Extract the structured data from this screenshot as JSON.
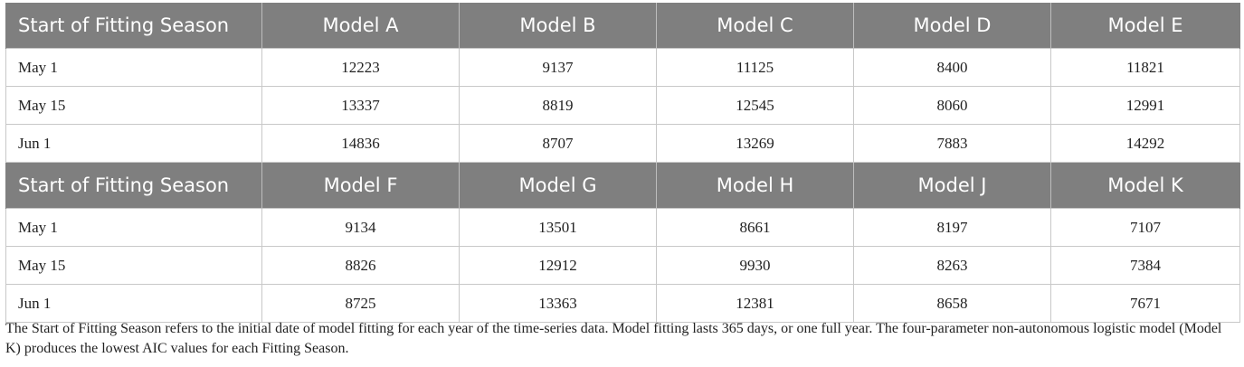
{
  "tables": [
    {
      "headers": [
        "Start of Fitting Season",
        "Model A",
        "Model B",
        "Model C",
        "Model D",
        "Model E"
      ],
      "rows": [
        [
          "May 1",
          "12223",
          "9137",
          "11125",
          "8400",
          "11821"
        ],
        [
          "May 15",
          "13337",
          "8819",
          "12545",
          "8060",
          "12991"
        ],
        [
          "Jun 1",
          "14836",
          "8707",
          "13269",
          "7883",
          "14292"
        ]
      ]
    },
    {
      "headers": [
        "Start of Fitting Season",
        "Model F",
        "Model G",
        "Model H",
        "Model J",
        "Model K"
      ],
      "rows": [
        [
          "May 1",
          "9134",
          "13501",
          "8661",
          "8197",
          "7107"
        ],
        [
          "May 15",
          "8826",
          "12912",
          "9930",
          "8263",
          "7384"
        ],
        [
          "Jun 1",
          "8725",
          "13363",
          "12381",
          "8658",
          "7671"
        ]
      ]
    }
  ],
  "footnote": "The Start of Fitting Season refers to the initial date of model fitting for each year of the time-series data. Model fitting lasts 365 days, or one full year. The four-parameter non-autonomous logistic model (Model K) produces the lowest AIC values for each Fitting Season.",
  "colors": {
    "header_bg": "#7f7f7f",
    "header_text": "#ffffff",
    "grid": "#c8c8c8"
  }
}
